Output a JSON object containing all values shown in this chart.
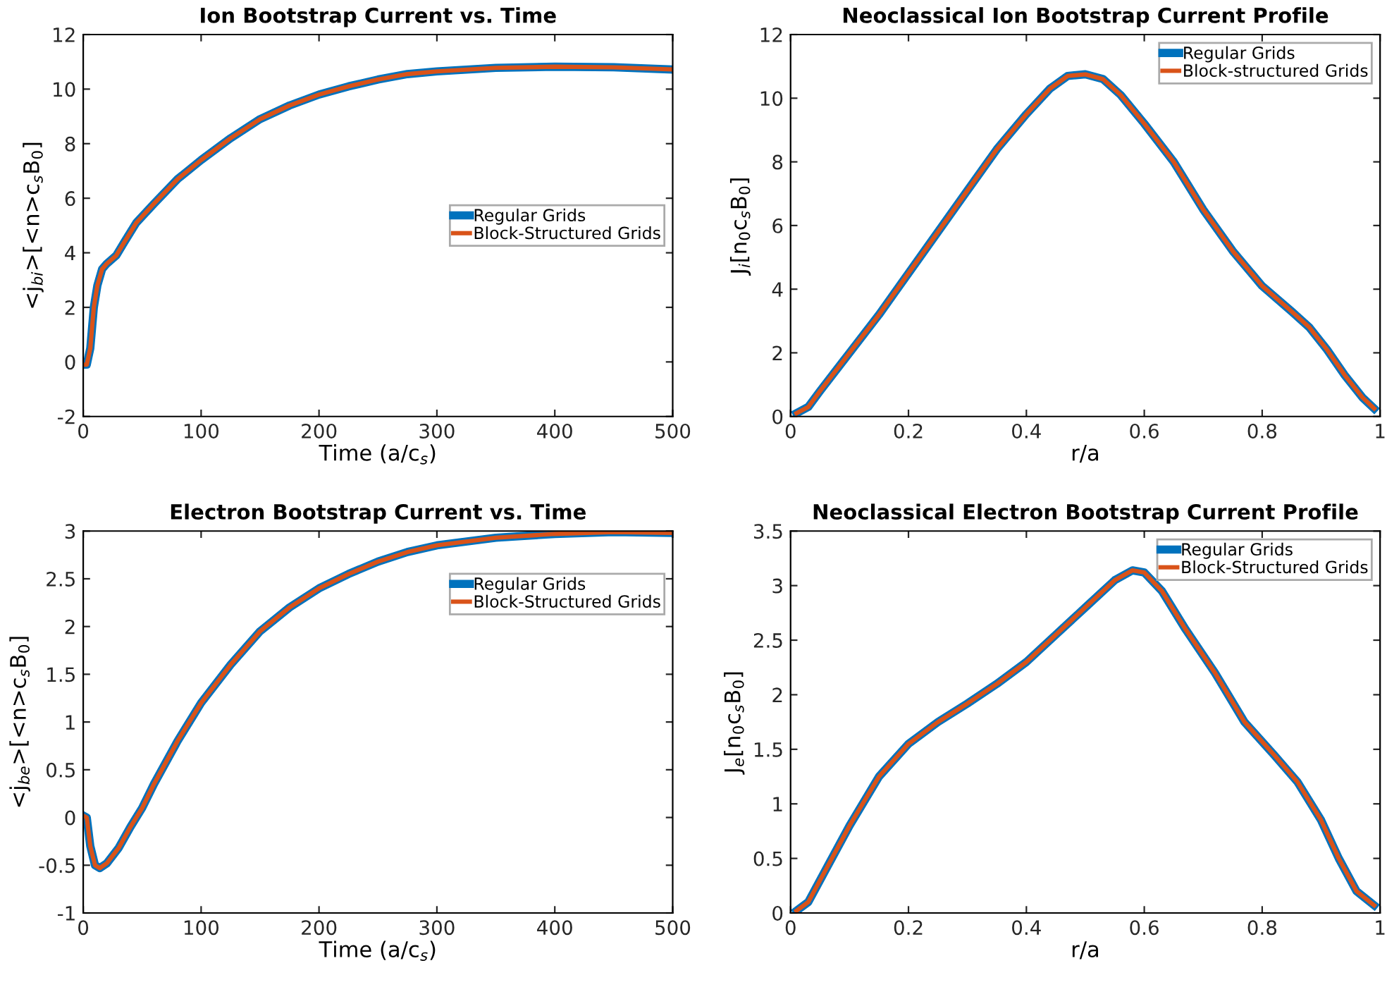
{
  "chart_data": [
    {
      "type": "line",
      "title": "Ion Bootstrap Current vs. Time",
      "xlabel": "Time (a/c$_{s}$)",
      "ylabel": "<j$_{bi}$>[<n>c$_{s}$B$_{0}$]",
      "xlim": [
        0,
        500
      ],
      "xticks": [
        0,
        100,
        200,
        300,
        400,
        500
      ],
      "ylim": [
        -2,
        12
      ],
      "yticks": [
        -2,
        0,
        2,
        4,
        6,
        8,
        10,
        12
      ],
      "legend": "center right",
      "grid": false,
      "x": [
        0,
        3,
        6,
        9,
        12,
        16,
        20,
        28,
        35,
        45,
        60,
        80,
        100,
        125,
        150,
        175,
        200,
        225,
        250,
        275,
        300,
        350,
        400,
        450,
        500
      ],
      "series": [
        {
          "name": "Regular Grids",
          "color": "#0072bd",
          "values": [
            -0.1,
            -0.1,
            0.5,
            2,
            2.8,
            3.4,
            3.6,
            3.9,
            4.4,
            5.1,
            5.8,
            6.7,
            7.4,
            8.2,
            8.9,
            9.4,
            9.8,
            10.1,
            10.35,
            10.55,
            10.65,
            10.78,
            10.82,
            10.8,
            10.72
          ]
        },
        {
          "name": "Block-Structured Grids",
          "color": "#d95319",
          "values": [
            -0.1,
            -0.1,
            0.5,
            2,
            2.8,
            3.4,
            3.6,
            3.9,
            4.4,
            5.1,
            5.8,
            6.7,
            7.4,
            8.2,
            8.9,
            9.4,
            9.8,
            10.1,
            10.35,
            10.55,
            10.65,
            10.78,
            10.82,
            10.8,
            10.72
          ]
        }
      ]
    },
    {
      "type": "line",
      "title": "Neoclassical Ion Bootstrap Current Profile",
      "xlabel": "r/a",
      "ylabel": "J$_{i}$[n$_{0}$c$_{s}$B$_{0}$]",
      "xlim": [
        0,
        1
      ],
      "xticks": [
        0,
        0.2,
        0.4,
        0.6,
        0.8,
        1
      ],
      "ylim": [
        0,
        12
      ],
      "yticks": [
        0,
        2,
        4,
        6,
        8,
        10,
        12
      ],
      "legend": "top right",
      "grid": false,
      "x": [
        0.01,
        0.03,
        0.05,
        0.1,
        0.15,
        0.2,
        0.25,
        0.3,
        0.35,
        0.4,
        0.44,
        0.47,
        0.5,
        0.53,
        0.56,
        0.6,
        0.65,
        0.7,
        0.75,
        0.8,
        0.85,
        0.88,
        0.91,
        0.94,
        0.97,
        0.99
      ],
      "series": [
        {
          "name": "Regular Grids",
          "color": "#0072bd",
          "values": [
            0.1,
            0.3,
            0.8,
            2.0,
            3.2,
            4.5,
            5.8,
            7.1,
            8.4,
            9.5,
            10.3,
            10.7,
            10.75,
            10.6,
            10.1,
            9.2,
            8.0,
            6.5,
            5.2,
            4.1,
            3.3,
            2.8,
            2.1,
            1.3,
            0.6,
            0.25
          ]
        },
        {
          "name": "Block-structured Grids",
          "color": "#d95319",
          "values": [
            0.1,
            0.3,
            0.8,
            2.0,
            3.2,
            4.5,
            5.8,
            7.1,
            8.4,
            9.5,
            10.3,
            10.7,
            10.75,
            10.6,
            10.1,
            9.2,
            8.0,
            6.5,
            5.2,
            4.1,
            3.3,
            2.8,
            2.1,
            1.3,
            0.6,
            0.25
          ]
        }
      ]
    },
    {
      "type": "line",
      "title": "Electron Bootstrap Current vs. Time",
      "xlabel": "Time (a/c$_{s}$)",
      "ylabel": "<j$_{be}$>[<n>c$_{s}$B$_{0}$]",
      "xlim": [
        0,
        500
      ],
      "xticks": [
        0,
        100,
        200,
        300,
        400,
        500
      ],
      "ylim": [
        -1,
        3
      ],
      "yticks": [
        -1,
        -0.5,
        0,
        0.5,
        1,
        1.5,
        2,
        2.5,
        3
      ],
      "legend": "top right",
      "grid": false,
      "x": [
        0,
        3,
        6,
        10,
        14,
        20,
        30,
        40,
        50,
        60,
        80,
        100,
        125,
        150,
        175,
        200,
        225,
        250,
        275,
        300,
        350,
        400,
        450,
        500
      ],
      "series": [
        {
          "name": "Regular Grids",
          "color": "#0072bd",
          "values": [
            0.02,
            0.0,
            -0.3,
            -0.5,
            -0.53,
            -0.48,
            -0.32,
            -0.1,
            0.1,
            0.35,
            0.8,
            1.2,
            1.6,
            1.95,
            2.2,
            2.4,
            2.55,
            2.68,
            2.78,
            2.85,
            2.93,
            2.97,
            2.99,
            2.98
          ]
        },
        {
          "name": "Block-Structured Grids",
          "color": "#d95319",
          "values": [
            0.02,
            0.0,
            -0.3,
            -0.5,
            -0.53,
            -0.48,
            -0.32,
            -0.1,
            0.1,
            0.35,
            0.8,
            1.2,
            1.6,
            1.95,
            2.2,
            2.4,
            2.55,
            2.68,
            2.78,
            2.85,
            2.93,
            2.97,
            2.99,
            2.98
          ]
        }
      ]
    },
    {
      "type": "line",
      "title": "Neoclassical Electron Bootstrap Current Profile",
      "xlabel": "r/a",
      "ylabel": "J$_{e}$[n$_{0}$c$_{s}$B$_{0}$]",
      "xlim": [
        0,
        1
      ],
      "xticks": [
        0,
        0.2,
        0.4,
        0.6,
        0.8,
        1
      ],
      "ylim": [
        0,
        3.5
      ],
      "yticks": [
        0,
        0.5,
        1,
        1.5,
        2,
        2.5,
        3,
        3.5
      ],
      "legend": "top right",
      "grid": false,
      "x": [
        0.01,
        0.03,
        0.06,
        0.1,
        0.15,
        0.2,
        0.25,
        0.3,
        0.35,
        0.4,
        0.45,
        0.5,
        0.55,
        0.58,
        0.6,
        0.63,
        0.67,
        0.72,
        0.77,
        0.82,
        0.86,
        0.9,
        0.93,
        0.96,
        0.99
      ],
      "series": [
        {
          "name": "Regular Grids",
          "color": "#0072bd",
          "values": [
            0.02,
            0.1,
            0.4,
            0.8,
            1.25,
            1.55,
            1.75,
            1.92,
            2.1,
            2.3,
            2.55,
            2.8,
            3.05,
            3.14,
            3.12,
            2.95,
            2.6,
            2.2,
            1.75,
            1.45,
            1.2,
            0.85,
            0.5,
            0.2,
            0.07
          ]
        },
        {
          "name": "Block-Structured Grids",
          "color": "#d95319",
          "values": [
            0.02,
            0.1,
            0.4,
            0.8,
            1.25,
            1.55,
            1.75,
            1.92,
            2.1,
            2.3,
            2.55,
            2.8,
            3.05,
            3.14,
            3.12,
            2.95,
            2.6,
            2.2,
            1.75,
            1.45,
            1.2,
            0.85,
            0.5,
            0.2,
            0.07
          ]
        }
      ]
    }
  ]
}
